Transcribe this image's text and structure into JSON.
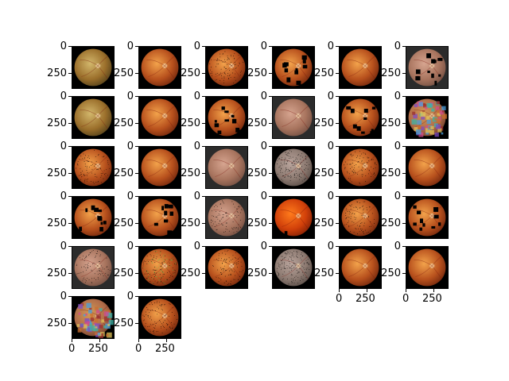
{
  "figure": {
    "rows": 6,
    "cols": 6,
    "tiles": [
      {
        "kind": "fundus-greenish",
        "ticks": {
          "y": [
            "0",
            "250"
          ]
        }
      },
      {
        "kind": "fundus-orange",
        "ticks": {
          "y": [
            "0",
            "250"
          ]
        }
      },
      {
        "kind": "fundus-dotted",
        "ticks": {
          "y": [
            "0",
            "250"
          ]
        }
      },
      {
        "kind": "fundus-blocks",
        "ticks": {
          "y": [
            "0",
            "250"
          ]
        }
      },
      {
        "kind": "fundus-orange",
        "ticks": {
          "y": [
            "0",
            "250"
          ]
        }
      },
      {
        "kind": "fundus-pale-blocks",
        "ticks": {
          "y": [
            "0",
            "250"
          ]
        }
      },
      {
        "kind": "fundus-greenish",
        "ticks": {
          "y": [
            "0",
            "250"
          ]
        }
      },
      {
        "kind": "fundus-orange",
        "ticks": {
          "y": [
            "0",
            "250"
          ]
        }
      },
      {
        "kind": "fundus-blocks",
        "ticks": {
          "y": [
            "0",
            "250"
          ]
        }
      },
      {
        "kind": "fundus-pale",
        "ticks": {
          "y": [
            "0",
            "250"
          ]
        }
      },
      {
        "kind": "fundus-blocks",
        "ticks": {
          "y": [
            "0",
            "250"
          ]
        }
      },
      {
        "kind": "fundus-pink-mosaic",
        "ticks": {
          "y": [
            "0",
            "250"
          ]
        }
      },
      {
        "kind": "fundus-dotted",
        "ticks": {
          "y": [
            "0",
            "250"
          ]
        }
      },
      {
        "kind": "fundus-orange",
        "ticks": {
          "y": [
            "0",
            "250"
          ]
        }
      },
      {
        "kind": "fundus-pale",
        "ticks": {
          "y": [
            "0",
            "250"
          ]
        }
      },
      {
        "kind": "fundus-gray-dotted",
        "ticks": {
          "y": [
            "0",
            "250"
          ]
        }
      },
      {
        "kind": "fundus-dotted",
        "ticks": {
          "y": [
            "0",
            "250"
          ]
        }
      },
      {
        "kind": "fundus-orange",
        "ticks": {
          "y": [
            "0",
            "250"
          ]
        }
      },
      {
        "kind": "fundus-blocks",
        "ticks": {
          "y": [
            "0",
            "250"
          ]
        }
      },
      {
        "kind": "fundus-blocks",
        "ticks": {
          "y": [
            "0",
            "250"
          ]
        }
      },
      {
        "kind": "fundus-pale-dotted",
        "ticks": {
          "y": [
            "0",
            "250"
          ]
        }
      },
      {
        "kind": "fundus-red-block",
        "ticks": {
          "y": [
            "0",
            "250"
          ]
        }
      },
      {
        "kind": "fundus-dotted",
        "ticks": {
          "y": [
            "0",
            "250"
          ]
        }
      },
      {
        "kind": "fundus-blocks",
        "ticks": {
          "y": [
            "0",
            "250"
          ]
        }
      },
      {
        "kind": "fundus-pale-dotted",
        "ticks": {
          "y": [
            "0",
            "250"
          ]
        }
      },
      {
        "kind": "fundus-green-dotted",
        "ticks": {
          "y": [
            "0",
            "250"
          ]
        }
      },
      {
        "kind": "fundus-dotted",
        "ticks": {
          "y": [
            "0",
            "250"
          ]
        }
      },
      {
        "kind": "fundus-gray-dotted",
        "ticks": {
          "y": [
            "0",
            "250"
          ]
        }
      },
      {
        "kind": "fundus-orange",
        "ticks": {
          "y": [
            "0",
            "250"
          ]
        },
        "x": [
          "0",
          "250"
        ]
      },
      {
        "kind": "fundus-orange",
        "ticks": {
          "y": [
            "0",
            "250"
          ]
        },
        "x": [
          "0",
          "250"
        ]
      },
      {
        "kind": "fundus-mosaic",
        "ticks": {
          "y": [
            "0",
            "250"
          ]
        },
        "x": [
          "0",
          "250"
        ]
      },
      {
        "kind": "fundus-dotted",
        "ticks": {
          "y": [
            "0",
            "250"
          ]
        },
        "x": [
          "0",
          "250"
        ]
      }
    ],
    "x_tick_labels_mid": [
      "0",
      "250"
    ]
  }
}
